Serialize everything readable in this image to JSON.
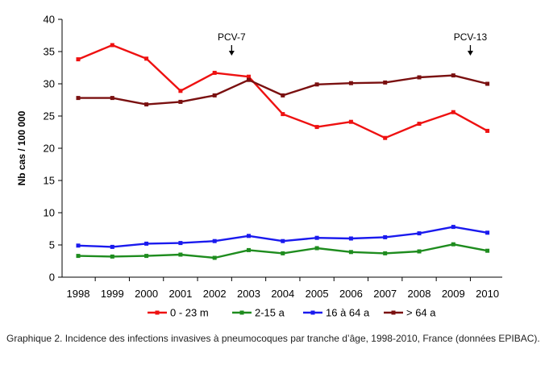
{
  "chart_data": {
    "type": "line",
    "title": "",
    "xlabel": "",
    "ylabel": "Nb cas / 100 000",
    "x": [
      1998,
      1999,
      2000,
      2001,
      2002,
      2003,
      2004,
      2005,
      2006,
      2007,
      2008,
      2009,
      2010
    ],
    "x_tick_labels": [
      "1998",
      "1999",
      "2000",
      "2001",
      "2002",
      "2003",
      "2004",
      "2005",
      "2006",
      "2007",
      "2008",
      "2009",
      "2010"
    ],
    "ylim": [
      0,
      40
    ],
    "y_ticks": [
      0,
      5,
      10,
      15,
      20,
      25,
      30,
      35,
      40
    ],
    "y_tick_labels": [
      "0",
      "5",
      "10",
      "15",
      "20",
      "25",
      "30",
      "35",
      "40"
    ],
    "grid": false,
    "legend_position": "bottom",
    "series": [
      {
        "name": "0 - 23 m",
        "color": "#ee1111",
        "values": [
          33.8,
          36.0,
          33.9,
          28.9,
          31.7,
          31.1,
          25.3,
          23.3,
          24.1,
          21.6,
          23.8,
          25.6,
          22.7
        ]
      },
      {
        "name": "2-15 a",
        "color": "#1e8c1e",
        "values": [
          3.3,
          3.2,
          3.3,
          3.5,
          3.0,
          4.2,
          3.7,
          4.5,
          3.9,
          3.7,
          4.0,
          5.1,
          4.1
        ]
      },
      {
        "name": "16 à 64 a",
        "color": "#1a1aee",
        "values": [
          4.9,
          4.7,
          5.2,
          5.3,
          5.6,
          6.4,
          5.6,
          6.1,
          6.0,
          6.2,
          6.8,
          7.8,
          6.9
        ]
      },
      {
        "name": "> 64 a",
        "color": "#7a1010",
        "values": [
          27.8,
          27.8,
          26.8,
          27.2,
          28.2,
          30.6,
          28.2,
          29.9,
          30.1,
          30.2,
          31.0,
          31.3,
          30.0
        ]
      }
    ],
    "annotations": [
      {
        "text": "PCV-7",
        "x": 2003
      },
      {
        "text": "PCV-13",
        "x": 2010
      }
    ]
  },
  "caption": "Graphique 2. Incidence des infections invasives à pneumocoques par tranche d’âge, 1998-2010, France (données EPIBAC)."
}
